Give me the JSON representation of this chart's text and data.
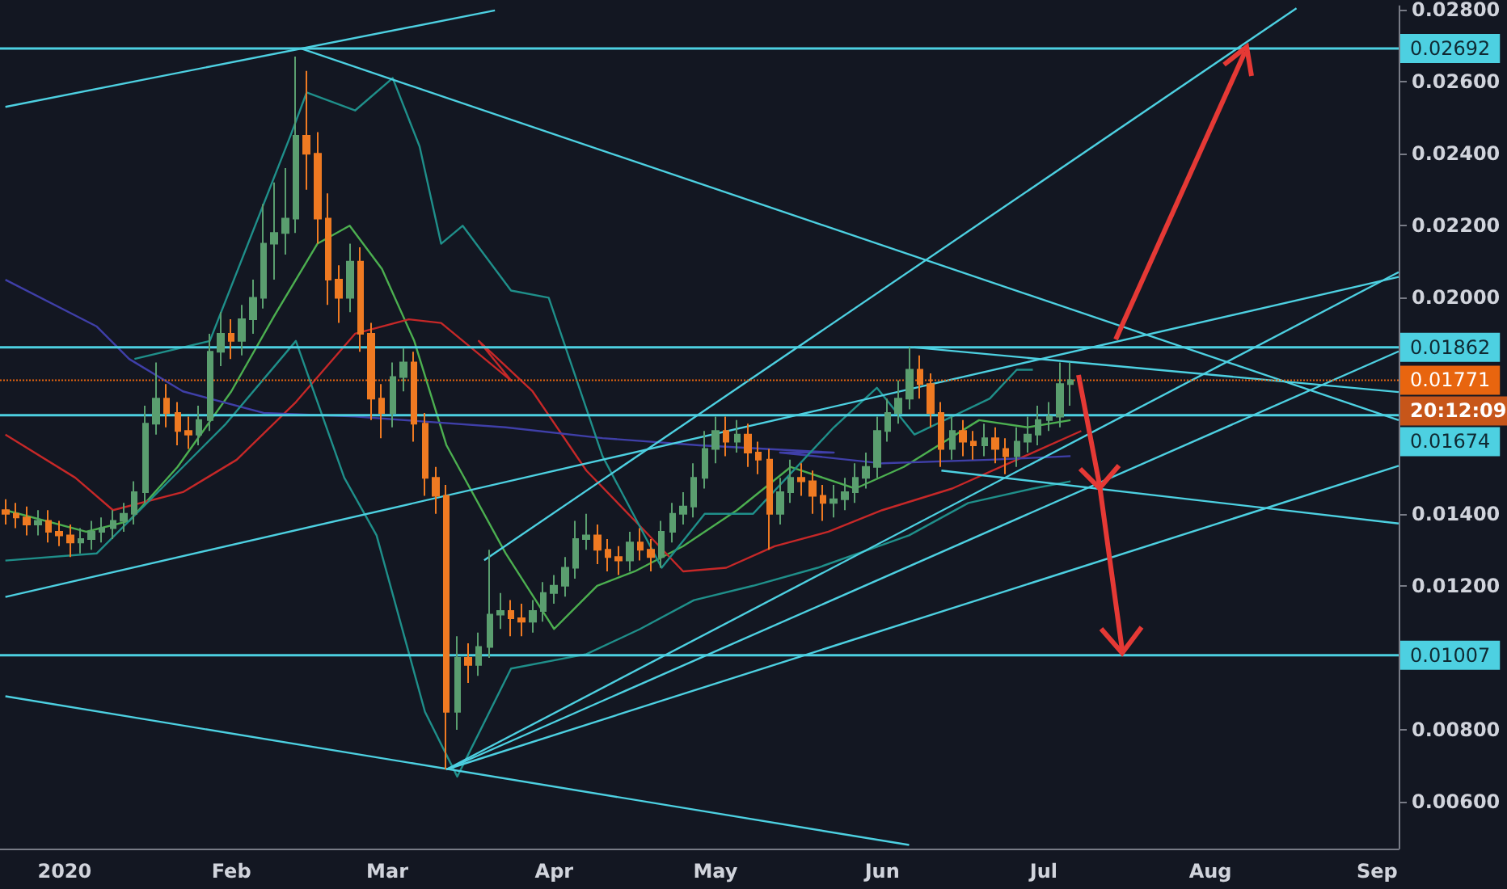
{
  "chart_data": {
    "type": "candlestick",
    "x": [
      "2019-12-21",
      "2019-12-23",
      "2019-12-25",
      "2019-12-27",
      "2019-12-29",
      "2019-12-31",
      "2020-01-02",
      "2020-01-04",
      "2020-01-06",
      "2020-01-08",
      "2020-01-10",
      "2020-01-12",
      "2020-01-14",
      "2020-01-16",
      "2020-01-18",
      "2020-01-20",
      "2020-01-22",
      "2020-01-24",
      "2020-01-26",
      "2020-01-28",
      "2020-01-30",
      "2020-02-01",
      "2020-02-03",
      "2020-02-05",
      "2020-02-07",
      "2020-02-09",
      "2020-02-11",
      "2020-02-13",
      "2020-02-15",
      "2020-02-17",
      "2020-02-19",
      "2020-02-21",
      "2020-02-23",
      "2020-02-25",
      "2020-02-27",
      "2020-02-29",
      "2020-03-02",
      "2020-03-04",
      "2020-03-06",
      "2020-03-08",
      "2020-03-10",
      "2020-03-12",
      "2020-03-14",
      "2020-03-16",
      "2020-03-18",
      "2020-03-20",
      "2020-03-22",
      "2020-03-24",
      "2020-03-26",
      "2020-03-28",
      "2020-03-30",
      "2020-04-01",
      "2020-04-03",
      "2020-04-05",
      "2020-04-07",
      "2020-04-09",
      "2020-04-11",
      "2020-04-13",
      "2020-04-15",
      "2020-04-17",
      "2020-04-19",
      "2020-04-21",
      "2020-04-23",
      "2020-04-25",
      "2020-04-27",
      "2020-04-29",
      "2020-05-01",
      "2020-05-03",
      "2020-05-05",
      "2020-05-07",
      "2020-05-09",
      "2020-05-11",
      "2020-05-13",
      "2020-05-15",
      "2020-05-17",
      "2020-05-19",
      "2020-05-21",
      "2020-05-23",
      "2020-05-25",
      "2020-05-27",
      "2020-05-29",
      "2020-05-31",
      "2020-06-02",
      "2020-06-04",
      "2020-06-06",
      "2020-06-08",
      "2020-06-10",
      "2020-06-12",
      "2020-06-14",
      "2020-06-16",
      "2020-06-18",
      "2020-06-20",
      "2020-06-22",
      "2020-06-24",
      "2020-06-26",
      "2020-06-28",
      "2020-06-30",
      "2020-07-02",
      "2020-07-04",
      "2020-07-06"
    ],
    "ohlc": [
      [
        0.0141,
        0.0144,
        0.0137,
        0.014
      ],
      [
        0.014,
        0.0143,
        0.0136,
        0.0139
      ],
      [
        0.0139,
        0.0142,
        0.0134,
        0.0137
      ],
      [
        0.0137,
        0.0141,
        0.0134,
        0.0138
      ],
      [
        0.0138,
        0.0141,
        0.0132,
        0.0135
      ],
      [
        0.0135,
        0.0138,
        0.0131,
        0.0134
      ],
      [
        0.0134,
        0.0137,
        0.0128,
        0.0132
      ],
      [
        0.0132,
        0.0136,
        0.0129,
        0.0133
      ],
      [
        0.0133,
        0.0138,
        0.013,
        0.0135
      ],
      [
        0.0135,
        0.0139,
        0.0132,
        0.0136
      ],
      [
        0.0136,
        0.0141,
        0.0133,
        0.0138
      ],
      [
        0.0138,
        0.0143,
        0.0135,
        0.014
      ],
      [
        0.014,
        0.0149,
        0.0137,
        0.0146
      ],
      [
        0.0146,
        0.017,
        0.0143,
        0.0165
      ],
      [
        0.0165,
        0.0182,
        0.0162,
        0.0172
      ],
      [
        0.0172,
        0.0176,
        0.0164,
        0.0168
      ],
      [
        0.0168,
        0.0171,
        0.0159,
        0.0163
      ],
      [
        0.0163,
        0.0167,
        0.0158,
        0.0162
      ],
      [
        0.0162,
        0.017,
        0.0159,
        0.0166
      ],
      [
        0.0166,
        0.019,
        0.0163,
        0.0185
      ],
      [
        0.0185,
        0.0196,
        0.0181,
        0.019
      ],
      [
        0.019,
        0.0194,
        0.0183,
        0.0188
      ],
      [
        0.0188,
        0.0198,
        0.0184,
        0.0194
      ],
      [
        0.0194,
        0.0205,
        0.019,
        0.02
      ],
      [
        0.02,
        0.0226,
        0.0197,
        0.0215
      ],
      [
        0.0215,
        0.0232,
        0.0205,
        0.0218
      ],
      [
        0.0218,
        0.0236,
        0.0212,
        0.0222
      ],
      [
        0.0222,
        0.0267,
        0.0218,
        0.0245
      ],
      [
        0.0245,
        0.0263,
        0.023,
        0.024
      ],
      [
        0.024,
        0.0246,
        0.0215,
        0.0222
      ],
      [
        0.0222,
        0.0229,
        0.0198,
        0.0205
      ],
      [
        0.0205,
        0.0209,
        0.0193,
        0.02
      ],
      [
        0.02,
        0.0215,
        0.0196,
        0.021
      ],
      [
        0.021,
        0.0214,
        0.0185,
        0.019
      ],
      [
        0.019,
        0.0193,
        0.0166,
        0.0172
      ],
      [
        0.0172,
        0.0176,
        0.0161,
        0.0168
      ],
      [
        0.0168,
        0.0182,
        0.0164,
        0.0178
      ],
      [
        0.0178,
        0.0186,
        0.0174,
        0.0182
      ],
      [
        0.0182,
        0.0185,
        0.016,
        0.0165
      ],
      [
        0.0165,
        0.0168,
        0.0145,
        0.015
      ],
      [
        0.015,
        0.0153,
        0.014,
        0.0145
      ],
      [
        0.0145,
        0.0148,
        0.0069,
        0.0085
      ],
      [
        0.0085,
        0.0106,
        0.008,
        0.01
      ],
      [
        0.01,
        0.0104,
        0.0093,
        0.0098
      ],
      [
        0.0098,
        0.0107,
        0.0095,
        0.0103
      ],
      [
        0.0103,
        0.013,
        0.01,
        0.0112
      ],
      [
        0.0112,
        0.0118,
        0.0108,
        0.0113
      ],
      [
        0.0113,
        0.0116,
        0.0106,
        0.0111
      ],
      [
        0.0111,
        0.0115,
        0.0106,
        0.011
      ],
      [
        0.011,
        0.0116,
        0.0107,
        0.0113
      ],
      [
        0.0113,
        0.0121,
        0.011,
        0.0118
      ],
      [
        0.0118,
        0.0123,
        0.0115,
        0.012
      ],
      [
        0.012,
        0.0128,
        0.0117,
        0.0125
      ],
      [
        0.0125,
        0.0138,
        0.0122,
        0.0133
      ],
      [
        0.0133,
        0.014,
        0.013,
        0.0134
      ],
      [
        0.0134,
        0.0137,
        0.0126,
        0.013
      ],
      [
        0.013,
        0.0133,
        0.0124,
        0.0128
      ],
      [
        0.0128,
        0.0131,
        0.0123,
        0.0127
      ],
      [
        0.0127,
        0.0135,
        0.0124,
        0.0132
      ],
      [
        0.0132,
        0.0136,
        0.0127,
        0.013
      ],
      [
        0.013,
        0.0133,
        0.0124,
        0.0128
      ],
      [
        0.0128,
        0.0138,
        0.0125,
        0.0135
      ],
      [
        0.0135,
        0.0143,
        0.0132,
        0.014
      ],
      [
        0.014,
        0.0146,
        0.0137,
        0.0142
      ],
      [
        0.0142,
        0.0154,
        0.0139,
        0.015
      ],
      [
        0.015,
        0.0163,
        0.0147,
        0.0158
      ],
      [
        0.0158,
        0.0167,
        0.0154,
        0.0163
      ],
      [
        0.0163,
        0.0167,
        0.0156,
        0.016
      ],
      [
        0.016,
        0.0166,
        0.0157,
        0.0162
      ],
      [
        0.0162,
        0.0165,
        0.0153,
        0.0157
      ],
      [
        0.0157,
        0.016,
        0.0151,
        0.0155
      ],
      [
        0.0155,
        0.0158,
        0.013,
        0.014
      ],
      [
        0.014,
        0.015,
        0.0137,
        0.0146
      ],
      [
        0.0146,
        0.0155,
        0.0143,
        0.015
      ],
      [
        0.015,
        0.0154,
        0.0145,
        0.0149
      ],
      [
        0.0149,
        0.0152,
        0.014,
        0.0145
      ],
      [
        0.0145,
        0.0148,
        0.0138,
        0.0143
      ],
      [
        0.0143,
        0.0148,
        0.0139,
        0.0144
      ],
      [
        0.0144,
        0.015,
        0.0141,
        0.0146
      ],
      [
        0.0146,
        0.0154,
        0.0143,
        0.015
      ],
      [
        0.015,
        0.0157,
        0.0147,
        0.0153
      ],
      [
        0.0153,
        0.0167,
        0.015,
        0.0163
      ],
      [
        0.0163,
        0.0172,
        0.016,
        0.0168
      ],
      [
        0.0168,
        0.0177,
        0.0165,
        0.0172
      ],
      [
        0.0172,
        0.01862,
        0.0169,
        0.018
      ],
      [
        0.018,
        0.0184,
        0.0172,
        0.0176
      ],
      [
        0.0176,
        0.0179,
        0.0164,
        0.0168
      ],
      [
        0.0168,
        0.0171,
        0.0153,
        0.0158
      ],
      [
        0.0158,
        0.0167,
        0.0155,
        0.0163
      ],
      [
        0.0163,
        0.0166,
        0.0156,
        0.016
      ],
      [
        0.016,
        0.0163,
        0.0155,
        0.0159
      ],
      [
        0.0159,
        0.0165,
        0.0156,
        0.0161
      ],
      [
        0.0161,
        0.0164,
        0.0154,
        0.0158
      ],
      [
        0.0158,
        0.0161,
        0.0151,
        0.0156
      ],
      [
        0.0156,
        0.0164,
        0.0153,
        0.016
      ],
      [
        0.016,
        0.0167,
        0.0157,
        0.0162
      ],
      [
        0.0162,
        0.017,
        0.0159,
        0.0166
      ],
      [
        0.0166,
        0.0171,
        0.0163,
        0.0167
      ],
      [
        0.0167,
        0.0182,
        0.0164,
        0.0176
      ],
      [
        0.0176,
        0.0182,
        0.017,
        0.01771
      ]
    ],
    "series": [
      {
        "type": "line",
        "color": "#4caf50",
        "x": [
          "2019-12-21",
          "2020-01-05",
          "2020-01-13",
          "2020-01-22",
          "2020-02-01",
          "2020-02-09",
          "2020-02-17",
          "2020-02-23",
          "2020-02-29",
          "2020-03-06",
          "2020-03-12",
          "2020-03-23",
          "2020-04-01",
          "2020-04-09",
          "2020-04-16",
          "2020-04-25",
          "2020-05-05",
          "2020-05-15",
          "2020-05-27",
          "2020-06-05",
          "2020-06-19",
          "2020-06-28",
          "2020-07-06"
        ],
        "values": [
          0.0141,
          0.0135,
          0.0138,
          0.0153,
          0.0174,
          0.0195,
          0.0215,
          0.022,
          0.0208,
          0.0188,
          0.0159,
          0.0129,
          0.0108,
          0.012,
          0.0124,
          0.0131,
          0.0141,
          0.0153,
          0.0147,
          0.0153,
          0.0166,
          0.0164,
          0.0166
        ]
      },
      {
        "type": "line",
        "color": "#c62828",
        "x": [
          "2019-12-21",
          "2020-01-03",
          "2020-01-10",
          "2020-01-23",
          "2020-02-02",
          "2020-02-13",
          "2020-02-24",
          "2020-03-05",
          "2020-03-11",
          "2020-03-24",
          "2020-03-18",
          "2020-03-28",
          "2020-04-07",
          "2020-04-18",
          "2020-04-25",
          "2020-05-03",
          "2020-05-12",
          "2020-05-22",
          "2020-06-01",
          "2020-06-14",
          "2020-06-26",
          "2020-07-08"
        ],
        "values": [
          0.0162,
          0.015,
          0.0141,
          0.0146,
          0.0155,
          0.0171,
          0.019,
          0.0194,
          0.0193,
          0.0177,
          0.0188,
          0.0174,
          0.0152,
          0.0135,
          0.0124,
          0.0125,
          0.0131,
          0.0135,
          0.0141,
          0.0147,
          0.0155,
          0.0163
        ]
      },
      {
        "type": "line",
        "color": "#3f3fa8",
        "x": [
          "2019-12-21",
          "2020-01-07",
          "2020-01-13",
          "2020-01-23",
          "2020-02-07",
          "2020-02-24",
          "2020-03-23",
          "2020-04-10",
          "2020-04-28",
          "2020-05-23",
          "2020-05-13",
          "2020-06-01",
          "2020-06-21",
          "2020-07-06"
        ],
        "values": [
          0.0205,
          0.0192,
          0.0183,
          0.0174,
          0.0168,
          0.0167,
          0.0164,
          0.0161,
          0.0159,
          0.0157,
          0.0157,
          0.0154,
          0.0155,
          0.0156
        ]
      },
      {
        "type": "line",
        "color": "#1f8f8a",
        "x": [
          "2020-01-14",
          "2020-01-28",
          "2020-02-12",
          "2020-02-15",
          "2020-02-24",
          "2020-03-02",
          "2020-03-07",
          "2020-03-11",
          "2020-03-15",
          "2020-03-24",
          "2020-03-31",
          "2020-04-10",
          "2020-04-21",
          "2020-04-29",
          "2020-05-08",
          "2020-05-23",
          "2020-05-31",
          "2020-06-07",
          "2020-06-21",
          "2020-06-26",
          "2020-06-29"
        ],
        "values": [
          0.0183,
          0.0188,
          0.0245,
          0.0257,
          0.0252,
          0.0261,
          0.0242,
          0.0215,
          0.022,
          0.0202,
          0.02,
          0.0156,
          0.0125,
          0.014,
          0.014,
          0.0164,
          0.0175,
          0.0162,
          0.0172,
          0.018,
          0.018
        ]
      },
      {
        "type": "line",
        "color": "#1f8f8a",
        "x": [
          "2019-12-21",
          "2020-01-07",
          "2020-01-19",
          "2020-01-31",
          "2020-02-13",
          "2020-02-22",
          "2020-02-28",
          "2020-03-08",
          "2020-03-14",
          "2020-03-24",
          "2020-04-07",
          "2020-04-17",
          "2020-04-27",
          "2020-05-08",
          "2020-05-20",
          "2020-06-06",
          "2020-06-17",
          "2020-06-29",
          "2020-07-06"
        ],
        "values": [
          0.0127,
          0.0129,
          0.0147,
          0.0165,
          0.0188,
          0.015,
          0.0134,
          0.0085,
          0.0067,
          0.0097,
          0.0101,
          0.0108,
          0.0116,
          0.012,
          0.0125,
          0.0134,
          0.0143,
          0.0147,
          0.0149
        ]
      },
      {
        "type": "line",
        "color": "#4dd0e1",
        "x": [
          "2019-12-21",
          "2020-03-21"
        ],
        "values": [
          0.0253,
          0.02798
        ]
      },
      {
        "type": "line",
        "color": "#4dd0e1",
        "x": [
          "2020-02-14",
          "2020-09-05"
        ],
        "values": [
          0.02692,
          0.0166
        ]
      },
      {
        "type": "line",
        "color": "#4dd0e1",
        "x": [
          "2019-12-21",
          "2020-09-05"
        ],
        "values": [
          0.01169,
          0.02058
        ]
      },
      {
        "type": "line",
        "color": "#4dd0e1",
        "x": [
          "2019-12-21",
          "2020-06-06"
        ],
        "values": [
          0.00893,
          0.0048
        ]
      },
      {
        "type": "line",
        "color": "#4dd0e1",
        "x": [
          "2020-03-19",
          "2020-08-17"
        ],
        "values": [
          0.01271,
          0.02804
        ]
      },
      {
        "type": "line",
        "color": "#4dd0e1",
        "x": [
          "2020-03-12",
          "2020-09-05"
        ],
        "values": [
          0.0069,
          0.02071
        ]
      },
      {
        "type": "line",
        "color": "#4dd0e1",
        "x": [
          "2020-03-12",
          "2020-09-05"
        ],
        "values": [
          0.0069,
          0.01851
        ]
      },
      {
        "type": "line",
        "color": "#4dd0e1",
        "x": [
          "2020-03-12",
          "2020-09-05"
        ],
        "values": [
          0.0069,
          0.01533
        ]
      },
      {
        "type": "line",
        "color": "#4dd0e1",
        "x": [
          "2020-06-07",
          "2020-09-05"
        ],
        "values": [
          0.01862,
          0.01738
        ]
      },
      {
        "type": "line",
        "color": "#4dd0e1",
        "x": [
          "2020-06-12",
          "2020-09-05"
        ],
        "values": [
          0.0152,
          0.01373
        ]
      }
    ],
    "xlim": [
      "2019-12-20",
      "2020-09-05"
    ],
    "xticks": [
      {
        "value": "2020-01-01",
        "label": "2020"
      },
      {
        "value": "2020-02-01",
        "label": "Feb"
      },
      {
        "value": "2020-03-01",
        "label": "Mar"
      },
      {
        "value": "2020-04-01",
        "label": "Apr"
      },
      {
        "value": "2020-05-01",
        "label": "May"
      },
      {
        "value": "2020-06-01",
        "label": "Jun"
      },
      {
        "value": "2020-07-01",
        "label": "Jul"
      },
      {
        "value": "2020-08-01",
        "label": "Aug"
      },
      {
        "value": "2020-09-01",
        "label": "Sep"
      }
    ],
    "ylim": [
      0.0047,
      0.0281
    ],
    "yticks": [
      {
        "value": 0.006,
        "label": "0.00600"
      },
      {
        "value": 0.008,
        "label": "0.00800"
      },
      {
        "value": 0.012,
        "label": "0.01200"
      },
      {
        "value": 0.014,
        "label": "0.01400"
      },
      {
        "value": 0.02,
        "label": "0.02000"
      },
      {
        "value": 0.022,
        "label": "0.02200"
      },
      {
        "value": 0.024,
        "label": "0.02400"
      },
      {
        "value": 0.026,
        "label": "0.02600"
      },
      {
        "value": 0.028,
        "label": "0.02800"
      }
    ],
    "ref_lines": [
      {
        "axis": "y",
        "value": 0.02692,
        "label": "0.02692",
        "color": "#4dd0e1"
      },
      {
        "axis": "y",
        "value": 0.01862,
        "label": "0.01862",
        "color": "#4dd0e1"
      },
      {
        "axis": "y",
        "value": 0.01674,
        "label": "0.01674",
        "color": "#4dd0e1"
      },
      {
        "axis": "y",
        "value": 0.01007,
        "label": "0.01007",
        "color": "#4dd0e1"
      },
      {
        "axis": "y",
        "value": 0.01771,
        "label": "0.01771",
        "color": "#e8650f",
        "line_style": "dotted"
      }
    ],
    "annotations": [
      "20:12:09"
    ],
    "grid": false
  }
}
